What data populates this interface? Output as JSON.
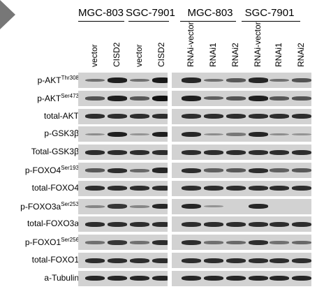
{
  "groups": [
    {
      "label": "MGC-803"
    },
    {
      "label": "SGC-7901"
    },
    {
      "label": "MGC-803"
    },
    {
      "label": "SGC-7901"
    }
  ],
  "lanes": [
    "vector",
    "CISD2",
    "vector",
    "CISD2",
    "RNAi-vector",
    "RNAi1",
    "RNAi2",
    "RNAi-vector",
    "RNAi1",
    "RNAi2"
  ],
  "rows": [
    {
      "label": "p-AKT",
      "sup": "Thr308"
    },
    {
      "label": "p-AKT",
      "sup": "Ser473"
    },
    {
      "label": "total-AKT",
      "sup": ""
    },
    {
      "label": "p-GSK3β",
      "sup": ""
    },
    {
      "label": "Total-GSK3β",
      "sup": ""
    },
    {
      "label": "p-FOXO4",
      "sup": "Ser193"
    },
    {
      "label": "total-FOXO4",
      "sup": ""
    },
    {
      "label": "p-FOXO3a",
      "sup": "Ser253"
    },
    {
      "label": "total-FOXO3a",
      "sup": ""
    },
    {
      "label": "p-FOXO1",
      "sup": "Ser256"
    },
    {
      "label": "total-FOXO1",
      "sup": ""
    },
    {
      "label": "a-Tubulin",
      "sup": ""
    }
  ],
  "band_intensity": [
    [
      0.35,
      0.9,
      0.35,
      0.95,
      0.85,
      0.35,
      0.5,
      0.85,
      0.35,
      0.55
    ],
    [
      0.55,
      0.9,
      0.5,
      1.0,
      0.9,
      0.45,
      0.55,
      0.9,
      0.5,
      0.55
    ],
    [
      0.8,
      0.8,
      0.8,
      0.8,
      0.8,
      0.8,
      0.8,
      0.8,
      0.8,
      0.8
    ],
    [
      0.15,
      0.9,
      0.1,
      0.9,
      0.85,
      0.15,
      0.3,
      0.85,
      0.15,
      0.1
    ],
    [
      0.8,
      0.8,
      0.8,
      0.8,
      0.8,
      0.8,
      0.8,
      0.8,
      0.8,
      0.8
    ],
    [
      0.5,
      0.8,
      0.4,
      0.85,
      0.8,
      0.45,
      0.5,
      0.8,
      0.45,
      0.5
    ],
    [
      0.8,
      0.8,
      0.8,
      0.8,
      0.8,
      0.8,
      0.8,
      0.8,
      0.8,
      0.8
    ],
    [
      0.2,
      0.75,
      0.2,
      0.85,
      0.85,
      0.1,
      0.0,
      0.85,
      0.0,
      0.0
    ],
    [
      0.8,
      0.8,
      0.8,
      0.8,
      0.8,
      0.8,
      0.8,
      0.8,
      0.8,
      0.8
    ],
    [
      0.35,
      0.75,
      0.35,
      0.8,
      0.8,
      0.35,
      0.4,
      0.8,
      0.35,
      0.4
    ],
    [
      0.8,
      0.8,
      0.8,
      0.8,
      0.8,
      0.8,
      0.8,
      0.8,
      0.8,
      0.8
    ],
    [
      0.85,
      0.85,
      0.85,
      0.85,
      0.85,
      0.85,
      0.85,
      0.85,
      0.85,
      0.85
    ]
  ]
}
